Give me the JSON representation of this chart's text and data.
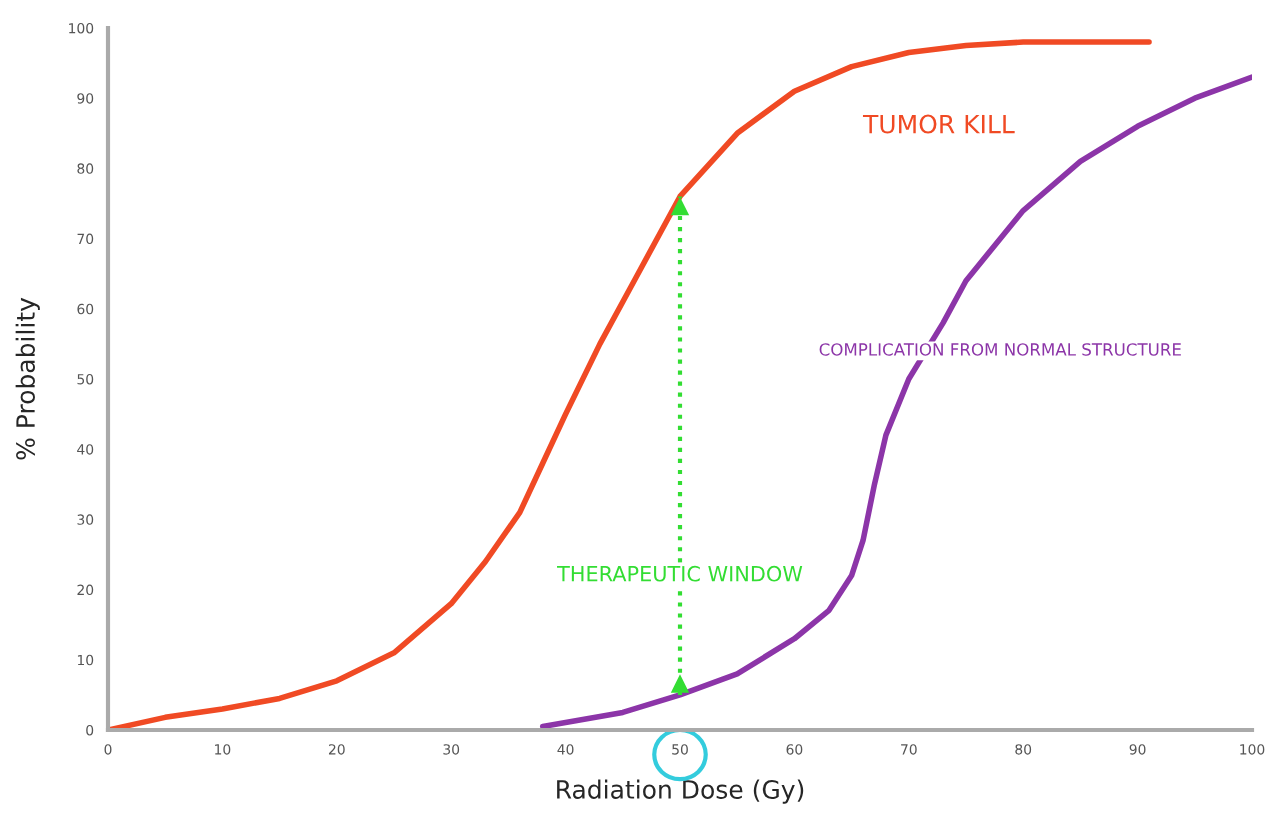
{
  "chart_data": {
    "type": "line",
    "xlabel": "Radiation Dose (Gy)",
    "ylabel": "% Probability",
    "series": [
      {
        "name": "TUMOR KILL",
        "color": "#f04a24",
        "x": [
          0,
          5,
          10,
          15,
          20,
          25,
          30,
          33,
          36,
          38,
          40,
          43,
          46,
          50,
          55,
          60,
          65,
          70,
          75,
          80,
          85,
          91
        ],
        "values": [
          0,
          1.8,
          3,
          4.5,
          7,
          11,
          18,
          24,
          31,
          38,
          45,
          55,
          64,
          76,
          85,
          91,
          94.5,
          96.5,
          97.5,
          98,
          98,
          98
        ]
      },
      {
        "name": "COMPLICATION FROM NORMAL STRUCTURE",
        "color": "#8c35a8",
        "x": [
          38,
          45,
          50,
          55,
          60,
          63,
          65,
          66,
          67,
          68,
          70,
          73,
          75,
          80,
          85,
          90,
          95,
          100
        ],
        "values": [
          0.5,
          2.5,
          5,
          8,
          13,
          17,
          22,
          27,
          35,
          42,
          50,
          58,
          64,
          74,
          81,
          86,
          90,
          93
        ]
      }
    ],
    "annotations": [
      "THERAPEUTIC WINDOW"
    ],
    "ref_lines": [
      {
        "axis": "x",
        "value": 50,
        "color": "#33dd33",
        "line_style": "dotted"
      }
    ],
    "xlim": [
      0,
      100
    ],
    "ylim": [
      0,
      100
    ],
    "xticks": [
      0,
      10,
      20,
      30,
      40,
      50,
      60,
      70,
      80,
      90,
      100
    ],
    "yticks": [
      0,
      10,
      20,
      30,
      40,
      50,
      60,
      70,
      80,
      90,
      100
    ],
    "grid": false,
    "legend": false,
    "marker": "none",
    "line_style": "solid"
  }
}
